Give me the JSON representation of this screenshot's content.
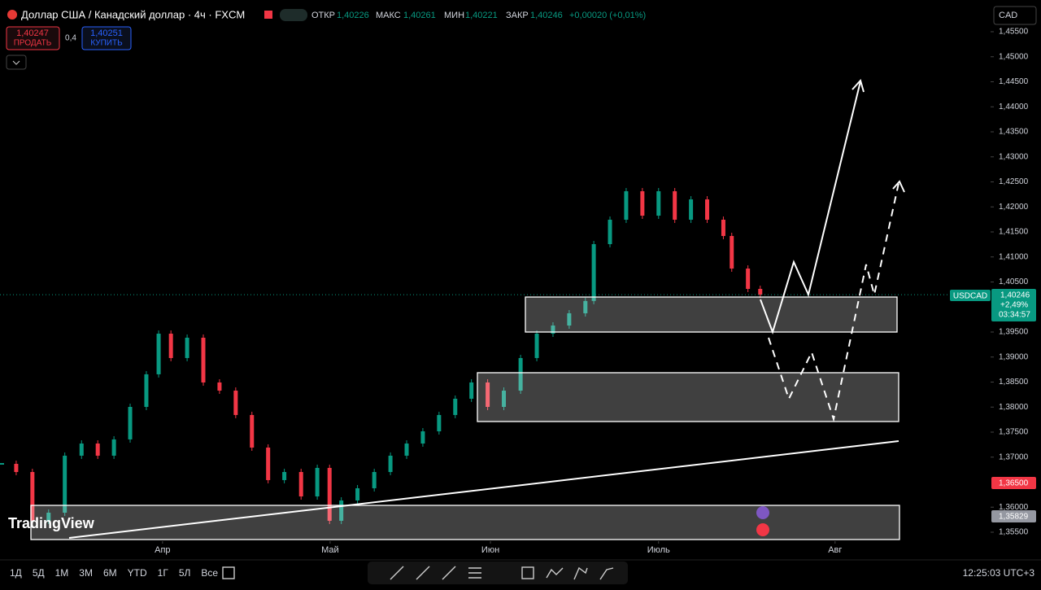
{
  "header": {
    "symbol": "Доллар США / Канадский доллар · 4ч · FXCM",
    "open_label": "ОТКР",
    "open": "1,40226",
    "high_label": "МАКС",
    "high": "1,40261",
    "low_label": "МИН",
    "low": "1,40221",
    "close_label": "ЗАКР",
    "close": "1,40246",
    "change": "+0,00020 (+0,01%)",
    "currency": "CAD"
  },
  "trade": {
    "sell_price": "1,40247",
    "sell_label": "ПРОДАТЬ",
    "spread": "0,4",
    "buy_price": "1,40251",
    "buy_label": "КУПИТЬ"
  },
  "price_labels": {
    "symbol": "USDCAD",
    "price": "1,40246",
    "change": "+2,49%",
    "countdown": "03:34:57",
    "level": "1,36500",
    "low_level": "1,35829"
  },
  "logo": "TradingView",
  "toolbar": {
    "ranges": [
      "1Д",
      "5Д",
      "1М",
      "3М",
      "6М",
      "YTD",
      "1Г",
      "5Л",
      "Все"
    ],
    "time": "12:25:03 UTC+3"
  },
  "chart_data": {
    "type": "candlestick",
    "x": [
      0,
      2.9,
      5.8,
      8.7,
      11.6,
      14.6,
      17.5,
      20.4,
      23.3,
      26.2,
      28.4,
      30.6,
      33.5,
      36.4,
      39.3,
      42.2,
      45.1,
      48,
      50.9,
      53.9,
      56.8,
      59,
      61.1,
      64,
      67,
      69.9,
      72.8,
      75.7,
      78.6,
      81.5,
      84.4,
      87.3,
      90.2,
      93.2,
      96.1,
      99,
      101.9,
      104.8,
      106.3,
      109.2,
      112.1,
      115,
      117.9,
      120.8,
      123.7,
      126.6,
      129.5,
      131,
      133.9,
      136.1
    ],
    "values": [
      1.36866,
      1.36703,
      1.35728,
      1.3589,
      1.37029,
      1.37272,
      1.37029,
      1.37354,
      1.38004,
      1.38655,
      1.39467,
      1.3898,
      1.39386,
      1.38492,
      1.38329,
      1.37842,
      1.37191,
      1.36541,
      1.36703,
      1.36215,
      1.36785,
      1.35728,
      1.36134,
      1.36378,
      1.36703,
      1.37029,
      1.37272,
      1.37516,
      1.37842,
      1.38167,
      1.38492,
      1.38004,
      1.38329,
      1.3898,
      1.39467,
      1.3963,
      1.39874,
      1.4012,
      1.41256,
      1.41744,
      1.42313,
      1.41825,
      1.42313,
      1.41744,
      1.4215,
      1.41744,
      1.41419,
      1.40768,
      1.40362,
      1.40246
    ],
    "xlim": [
      0,
      176.9
    ],
    "ylim": [
      1.35321,
      1.46134
    ],
    "xticks": [
      {
        "value": 29.1,
        "label": "Апр"
      },
      {
        "value": 59.1,
        "label": "Май"
      },
      {
        "value": 87.8,
        "label": "Июн"
      },
      {
        "value": 117.9,
        "label": "Июль"
      },
      {
        "value": 149.5,
        "label": "Авг"
      }
    ],
    "yticks": [
      {
        "value": 1.455,
        "label": "1,45500"
      },
      {
        "value": 1.45,
        "label": "1,45000"
      },
      {
        "value": 1.445,
        "label": "1,44500"
      },
      {
        "value": 1.44,
        "label": "1,44000"
      },
      {
        "value": 1.435,
        "label": "1,43500"
      },
      {
        "value": 1.43,
        "label": "1,43000"
      },
      {
        "value": 1.425,
        "label": "1,42500"
      },
      {
        "value": 1.42,
        "label": "1,42000"
      },
      {
        "value": 1.415,
        "label": "1,41500"
      },
      {
        "value": 1.41,
        "label": "1,41000"
      },
      {
        "value": 1.405,
        "label": "1,40500"
      },
      {
        "value": 1.395,
        "label": "1,39500"
      },
      {
        "value": 1.39,
        "label": "1,39000"
      },
      {
        "value": 1.385,
        "label": "1,38500"
      },
      {
        "value": 1.38,
        "label": "1,38000"
      },
      {
        "value": 1.375,
        "label": "1,37500"
      },
      {
        "value": 1.37,
        "label": "1,37000"
      },
      {
        "value": 1.36,
        "label": "1,36000"
      },
      {
        "value": 1.355,
        "label": "1,35500"
      }
    ],
    "up_color": "#089981",
    "down_color": "#f23645"
  }
}
